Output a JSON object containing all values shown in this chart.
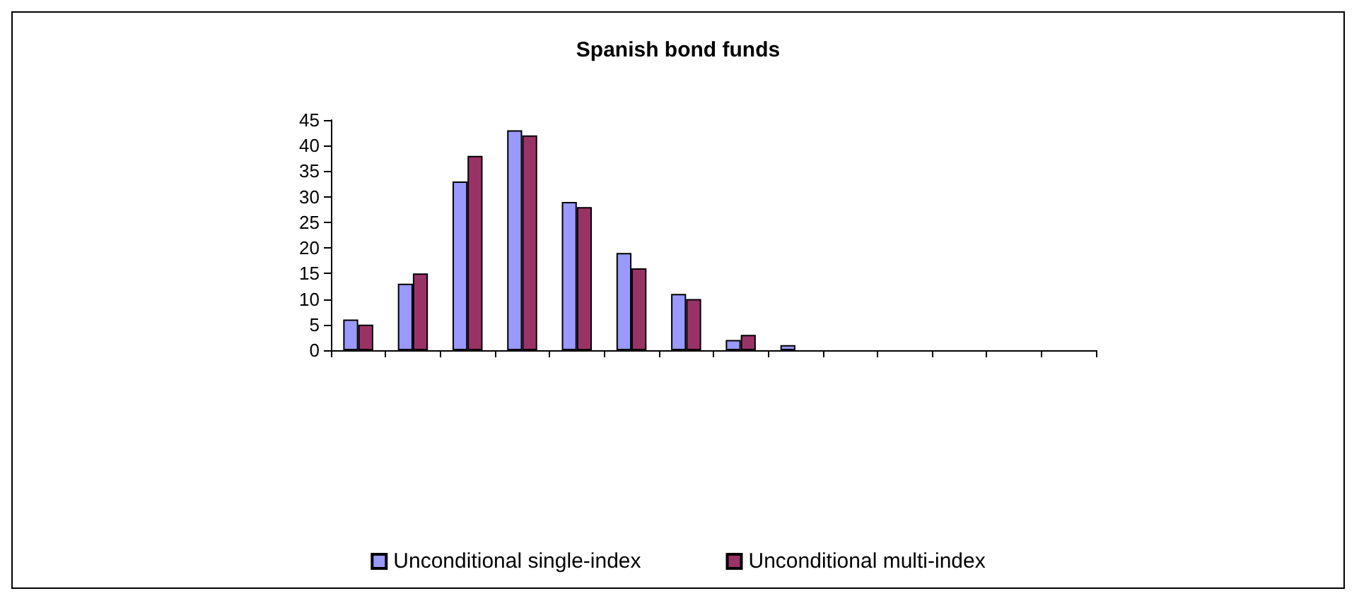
{
  "chart_data": {
    "type": "bar",
    "title": "Spanish bond funds",
    "categories": [
      null,
      null,
      null,
      null,
      null,
      null,
      null,
      null,
      null,
      null,
      null,
      null,
      null,
      null
    ],
    "series": [
      {
        "name": "Unconditional single-index",
        "color": "#9999ff",
        "values": [
          6,
          13,
          33,
          43,
          29,
          19,
          11,
          2,
          1,
          0,
          0,
          0,
          0,
          0
        ]
      },
      {
        "name": "Unconditional multi-index",
        "color": "#993366",
        "values": [
          5,
          15,
          38,
          42,
          28,
          16,
          10,
          3,
          0,
          0,
          0,
          0,
          0,
          0
        ]
      }
    ],
    "ylim": [
      0,
      45
    ],
    "yticks": [
      0,
      5,
      10,
      15,
      20,
      25,
      30,
      35,
      40,
      45
    ],
    "grid": false,
    "legend": "bottom"
  }
}
